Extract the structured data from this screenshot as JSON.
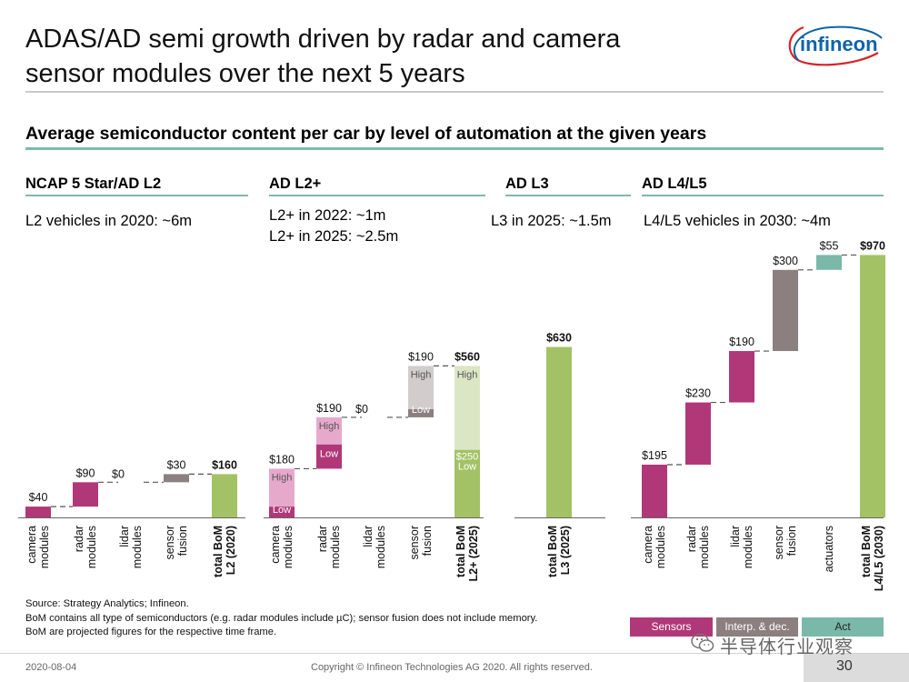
{
  "header": {
    "title_line1": "ADAS/AD semi growth driven by radar and camera",
    "title_line2": "sensor modules over the next 5 years",
    "logo_text": "infineon"
  },
  "subtitle": "Average semiconductor content per car by level of automation at the given years",
  "sections": [
    {
      "heading": "NCAP 5 Star/AD L2",
      "notes": [
        "L2 vehicles in 2020: ~6m"
      ]
    },
    {
      "heading": "AD L2+",
      "notes": [
        "L2+ in 2022: ~1m",
        "L2+ in 2025: ~2.5m"
      ]
    },
    {
      "heading": "AD L3",
      "notes": [
        "L3 in 2025: ~1.5m"
      ]
    },
    {
      "heading": "AD L4/L5",
      "notes": [
        "L4/L5 vehicles in 2030: ~4m"
      ]
    }
  ],
  "colors": {
    "sensors": "#b03878",
    "sensors_high": "#e6a9cc",
    "interp": "#8c7f7f",
    "interp_high": "#d3cccd",
    "actuators": "#7ab8a9",
    "total": "#a3c266",
    "total_high": "#dbe7c4",
    "accent_rule": "#7fb8ad",
    "logo": "#0e63a8",
    "logo_swoosh": "#d8232a"
  },
  "chart_data": [
    {
      "type": "bar",
      "subtype": "waterfall",
      "group": "NCAP 5 Star/AD L2",
      "categories": [
        "camera modules",
        "radar modules",
        "lidar modules",
        "sensor fusion",
        "total BoM L2 (2020)"
      ],
      "values": [
        40,
        90,
        0,
        30,
        160
      ],
      "labels": [
        "$40",
        "$90",
        "$0",
        "$30",
        "$160"
      ]
    },
    {
      "type": "bar",
      "subtype": "waterfall",
      "group": "AD L2+",
      "categories": [
        "camera modules",
        "radar modules",
        "lidar modules",
        "sensor fusion",
        "total BoM L2+ (2025)"
      ],
      "values": [
        180,
        190,
        0,
        190,
        560
      ],
      "labels": [
        "$180",
        "$190",
        "$0",
        "$190",
        "$560"
      ],
      "low_high_split": [
        {
          "category": "camera modules",
          "Low": 40,
          "High": 140
        },
        {
          "category": "radar modules",
          "Low": 90,
          "High": 100
        },
        {
          "category": "sensor fusion",
          "Low": 30,
          "High": 160
        },
        {
          "category": "total BoM L2+ (2025)",
          "Low": 250,
          "High": 310
        }
      ],
      "segment_labels": {
        "low": "Low",
        "high": "High",
        "low_total_label": "$250"
      }
    },
    {
      "type": "bar",
      "subtype": "waterfall",
      "group": "AD L3",
      "categories": [
        "total BoM L3 (2025)"
      ],
      "values": [
        630
      ],
      "labels": [
        "$630"
      ]
    },
    {
      "type": "bar",
      "subtype": "waterfall",
      "group": "AD L4/L5",
      "categories": [
        "camera modules",
        "radar modules",
        "lidar modules",
        "sensor fusion",
        "actuators",
        "total BoM L4/L5 (2030)"
      ],
      "values": [
        195,
        230,
        190,
        300,
        55,
        970
      ],
      "labels": [
        "$195",
        "$230",
        "$190",
        "$300",
        "$55",
        "$970"
      ]
    }
  ],
  "legend": [
    {
      "label": "Sensors"
    },
    {
      "label": "Interp. & dec."
    },
    {
      "label": "Act"
    }
  ],
  "footnote_lines": [
    "Source: Strategy Analytics; Infineon.",
    "BoM contains all type of semiconductors (e.g. radar modules include µC); sensor fusion does not include memory.",
    "BoM are projected figures for the respective time frame."
  ],
  "footer": {
    "date": "2020-08-04",
    "copyright": "Copyright © Infineon Technologies AG 2020. All rights reserved.",
    "page": "30"
  },
  "watermark": "半导体行业观察"
}
